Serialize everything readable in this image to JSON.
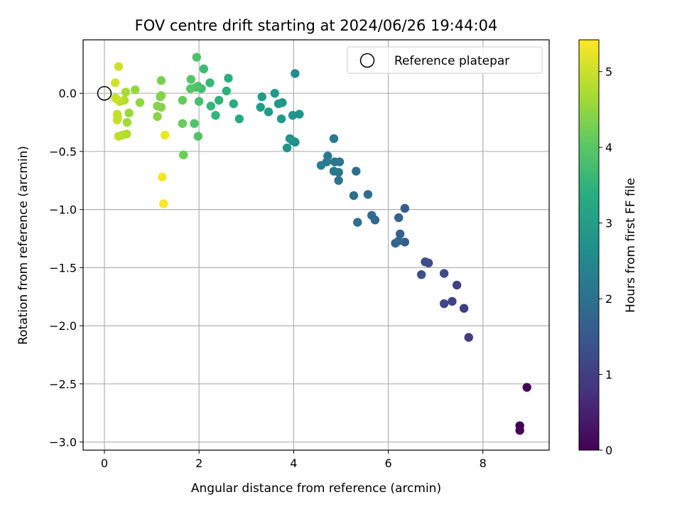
{
  "chart_data": {
    "type": "scatter",
    "title": "FOV centre drift starting at 2024/06/26 19:44:04",
    "xlabel": "Angular distance from reference (arcmin)",
    "ylabel": "Rotation from reference (arcmin)",
    "xlim": [
      -0.45,
      9.4
    ],
    "ylim": [
      -3.07,
      0.46
    ],
    "xticks": [
      0,
      2,
      4,
      6,
      8
    ],
    "xtick_labels": [
      "0",
      "2",
      "4",
      "6",
      "8"
    ],
    "yticks": [
      0.0,
      -0.5,
      -1.0,
      -1.5,
      -2.0,
      -2.5,
      -3.0
    ],
    "ytick_labels": [
      "0.0",
      "−0.5",
      "−1.0",
      "−1.5",
      "−2.0",
      "−2.5",
      "−3.0"
    ],
    "grid": true,
    "legend": {
      "placement": "top-right",
      "entries": [
        "Reference platepar"
      ]
    },
    "reference_point": {
      "x": 0,
      "y": 0,
      "label": "Reference platepar"
    },
    "colorbar": {
      "label": "Hours from first FF file",
      "colormap": "viridis",
      "range": [
        0,
        5.42
      ],
      "ticks": [
        0,
        1,
        2,
        3,
        4,
        5
      ],
      "tick_labels": [
        "0",
        "1",
        "2",
        "3",
        "4",
        "5"
      ]
    },
    "points": [
      {
        "x": 8.93,
        "y": -2.53,
        "c": 0.05
      },
      {
        "x": 8.78,
        "y": -2.86,
        "c": 0.0
      },
      {
        "x": 8.78,
        "y": -2.9,
        "c": 0.03
      },
      {
        "x": 7.7,
        "y": -2.1,
        "c": 0.95
      },
      {
        "x": 7.6,
        "y": -1.85,
        "c": 1.0
      },
      {
        "x": 7.45,
        "y": -1.65,
        "c": 1.05
      },
      {
        "x": 7.35,
        "y": -1.79,
        "c": 1.1
      },
      {
        "x": 7.18,
        "y": -1.81,
        "c": 1.15
      },
      {
        "x": 7.18,
        "y": -1.55,
        "c": 1.2
      },
      {
        "x": 6.85,
        "y": -1.46,
        "c": 1.25
      },
      {
        "x": 6.78,
        "y": -1.45,
        "c": 1.3
      },
      {
        "x": 6.7,
        "y": -1.56,
        "c": 1.35
      },
      {
        "x": 6.35,
        "y": -0.99,
        "c": 1.55
      },
      {
        "x": 6.35,
        "y": -1.28,
        "c": 1.6
      },
      {
        "x": 6.25,
        "y": -1.21,
        "c": 1.65
      },
      {
        "x": 6.22,
        "y": -1.07,
        "c": 1.7
      },
      {
        "x": 6.15,
        "y": -1.29,
        "c": 1.75
      },
      {
        "x": 6.22,
        "y": -1.27,
        "c": 1.78
      },
      {
        "x": 5.72,
        "y": -1.09,
        "c": 1.85
      },
      {
        "x": 5.65,
        "y": -1.05,
        "c": 1.88
      },
      {
        "x": 5.57,
        "y": -0.87,
        "c": 1.92
      },
      {
        "x": 5.35,
        "y": -1.11,
        "c": 1.95
      },
      {
        "x": 5.32,
        "y": -0.67,
        "c": 1.98
      },
      {
        "x": 5.27,
        "y": -0.88,
        "c": 2.0
      },
      {
        "x": 4.97,
        "y": -0.59,
        "c": 2.05
      },
      {
        "x": 4.95,
        "y": -0.68,
        "c": 2.1
      },
      {
        "x": 4.95,
        "y": -0.75,
        "c": 2.12
      },
      {
        "x": 4.87,
        "y": -0.59,
        "c": 2.15
      },
      {
        "x": 4.85,
        "y": -0.67,
        "c": 2.18
      },
      {
        "x": 4.85,
        "y": -0.39,
        "c": 2.2
      },
      {
        "x": 4.72,
        "y": -0.54,
        "c": 2.25
      },
      {
        "x": 4.7,
        "y": -0.59,
        "c": 2.28
      },
      {
        "x": 4.58,
        "y": -0.62,
        "c": 2.32
      },
      {
        "x": 4.03,
        "y": 0.17,
        "c": 2.6
      },
      {
        "x": 4.03,
        "y": -0.42,
        "c": 2.65
      },
      {
        "x": 3.98,
        "y": -0.41,
        "c": 2.7
      },
      {
        "x": 3.92,
        "y": -0.39,
        "c": 2.75
      },
      {
        "x": 3.86,
        "y": -0.47,
        "c": 2.78
      },
      {
        "x": 4.12,
        "y": -0.18,
        "c": 2.8
      },
      {
        "x": 3.98,
        "y": -0.19,
        "c": 2.82
      },
      {
        "x": 3.76,
        "y": -0.08,
        "c": 2.85
      },
      {
        "x": 3.74,
        "y": -0.22,
        "c": 2.88
      },
      {
        "x": 3.68,
        "y": -0.09,
        "c": 2.9
      },
      {
        "x": 3.6,
        "y": 0.0,
        "c": 2.93
      },
      {
        "x": 3.47,
        "y": -0.16,
        "c": 2.96
      },
      {
        "x": 3.33,
        "y": -0.03,
        "c": 3.0
      },
      {
        "x": 3.3,
        "y": -0.12,
        "c": 3.03
      },
      {
        "x": 2.85,
        "y": -0.22,
        "c": 3.3
      },
      {
        "x": 2.73,
        "y": -0.09,
        "c": 3.35
      },
      {
        "x": 2.62,
        "y": 0.13,
        "c": 3.4
      },
      {
        "x": 2.58,
        "y": 0.02,
        "c": 3.45
      },
      {
        "x": 2.42,
        "y": -0.06,
        "c": 3.5
      },
      {
        "x": 2.35,
        "y": -0.19,
        "c": 3.55
      },
      {
        "x": 2.25,
        "y": -0.11,
        "c": 3.6
      },
      {
        "x": 2.23,
        "y": 0.09,
        "c": 3.65
      },
      {
        "x": 2.1,
        "y": 0.21,
        "c": 3.7
      },
      {
        "x": 2.05,
        "y": 0.04,
        "c": 3.75
      },
      {
        "x": 2.0,
        "y": -0.07,
        "c": 3.8
      },
      {
        "x": 1.98,
        "y": 0.06,
        "c": 3.83
      },
      {
        "x": 1.95,
        "y": 0.31,
        "c": 3.86
      },
      {
        "x": 1.93,
        "y": 0.05,
        "c": 3.88
      },
      {
        "x": 1.98,
        "y": -0.37,
        "c": 3.9
      },
      {
        "x": 1.9,
        "y": -0.26,
        "c": 3.92
      },
      {
        "x": 1.83,
        "y": 0.12,
        "c": 3.95
      },
      {
        "x": 1.82,
        "y": 0.04,
        "c": 3.98
      },
      {
        "x": 1.65,
        "y": -0.06,
        "c": 4.1
      },
      {
        "x": 1.65,
        "y": -0.26,
        "c": 4.15
      },
      {
        "x": 1.67,
        "y": -0.53,
        "c": 4.2
      },
      {
        "x": 1.2,
        "y": 0.11,
        "c": 4.3
      },
      {
        "x": 1.2,
        "y": -0.02,
        "c": 4.35
      },
      {
        "x": 1.18,
        "y": -0.03,
        "c": 4.38
      },
      {
        "x": 1.2,
        "y": -0.12,
        "c": 4.4
      },
      {
        "x": 1.12,
        "y": -0.11,
        "c": 4.42
      },
      {
        "x": 1.12,
        "y": -0.2,
        "c": 4.45
      },
      {
        "x": 0.75,
        "y": -0.08,
        "c": 4.5
      },
      {
        "x": 0.65,
        "y": 0.03,
        "c": 4.55
      },
      {
        "x": 0.52,
        "y": -0.17,
        "c": 4.6
      },
      {
        "x": 0.48,
        "y": -0.25,
        "c": 4.65
      },
      {
        "x": 0.45,
        "y": 0.01,
        "c": 4.7
      },
      {
        "x": 0.47,
        "y": -0.35,
        "c": 4.75
      },
      {
        "x": 0.42,
        "y": -0.06,
        "c": 4.78
      },
      {
        "x": 0.38,
        "y": -0.36,
        "c": 4.82
      },
      {
        "x": 0.33,
        "y": -0.07,
        "c": 4.85
      },
      {
        "x": 0.3,
        "y": -0.37,
        "c": 4.88
      },
      {
        "x": 0.28,
        "y": -0.21,
        "c": 4.9
      },
      {
        "x": 0.27,
        "y": -0.18,
        "c": 4.92
      },
      {
        "x": 0.27,
        "y": -0.23,
        "c": 4.95
      },
      {
        "x": 0.26,
        "y": -0.05,
        "c": 4.97
      },
      {
        "x": 0.23,
        "y": -0.04,
        "c": 5.0
      },
      {
        "x": 0.3,
        "y": 0.23,
        "c": 5.02
      },
      {
        "x": 0.23,
        "y": 0.09,
        "c": 5.05
      },
      {
        "x": 1.28,
        "y": -0.36,
        "c": 5.3
      },
      {
        "x": 1.22,
        "y": -0.72,
        "c": 5.35
      },
      {
        "x": 1.25,
        "y": -0.95,
        "c": 5.4
      }
    ]
  }
}
